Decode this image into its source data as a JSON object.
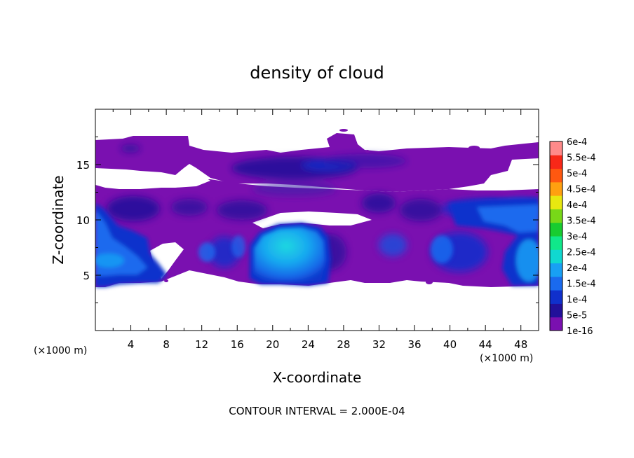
{
  "chart_data": {
    "type": "heatmap",
    "title": "density of cloud",
    "xlabel": "X-coordinate",
    "ylabel": "Z-coordinate",
    "x_unit": "(×1000 m)",
    "y_unit": "(×1000 m)",
    "xlim": [
      0,
      50
    ],
    "ylim": [
      0,
      20
    ],
    "x_ticks": [
      "4",
      "8",
      "12",
      "16",
      "20",
      "24",
      "28",
      "32",
      "36",
      "40",
      "44",
      "48"
    ],
    "y_ticks": [
      "5",
      "10",
      "15"
    ],
    "colorbar": {
      "labels": [
        "1e-16",
        "5e-5",
        "1e-4",
        "1.5e-4",
        "2e-4",
        "2.5e-4",
        "3e-4",
        "3.5e-4",
        "4e-4",
        "4.5e-4",
        "5e-4",
        "5.5e-4",
        "6e-4"
      ],
      "colors": [
        "#7a10b0",
        "#22109a",
        "#1030cc",
        "#1a6aee",
        "#18a0f4",
        "#10d8d0",
        "#10e88a",
        "#18cc30",
        "#78d818",
        "#e8e810",
        "#ffa010",
        "#ff5810",
        "#f82818",
        "#ff8a8a"
      ]
    },
    "note": "CONTOUR INTERVAL = 2.000E-04",
    "grid": false,
    "cloud_layers": [
      {
        "name": "upper anvil",
        "x_range": [
          0,
          50
        ],
        "z_range": [
          11,
          17.5
        ],
        "level": "1e-16 to 5e-5"
      },
      {
        "name": "lower convective cells",
        "x_range": [
          0,
          50
        ],
        "z_range": [
          4,
          11
        ],
        "level": "up to 2e-4"
      },
      {
        "name": "core near x=20-24",
        "x_range": [
          18,
          26
        ],
        "z_range": [
          5,
          9.8
        ],
        "level": "1.5e-4 to 2e-4"
      }
    ]
  }
}
